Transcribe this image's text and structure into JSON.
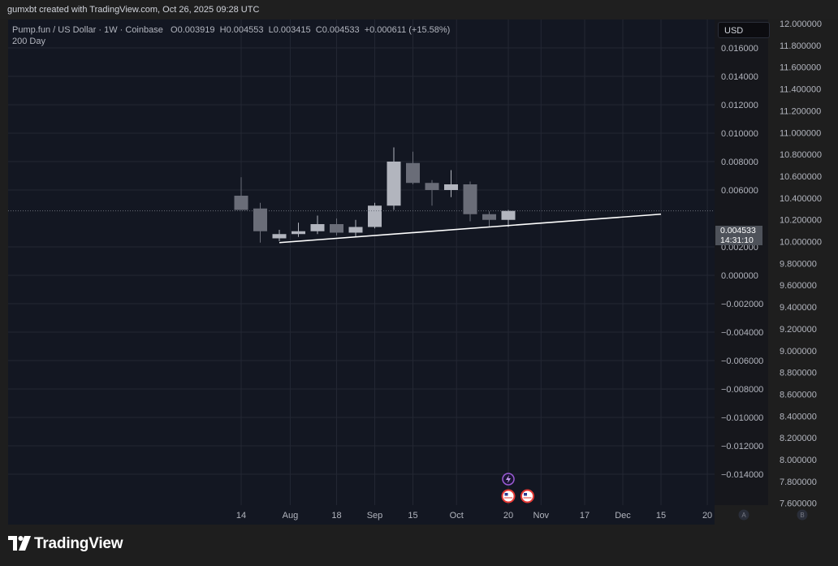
{
  "header": {
    "attribution": "gumxbt created with TradingView.com, Oct 26, 2025 09:28 UTC"
  },
  "legend": {
    "symbol": "Pump.fun / US Dollar · 1W · Coinbase",
    "open_label": "O",
    "open": "0.003919",
    "high_label": "H",
    "high": "0.004553",
    "low_label": "L",
    "low": "0.003415",
    "close_label": "C",
    "close": "0.004533",
    "change": "+0.000611 (+15.58%)",
    "indicator": "200 Day"
  },
  "currency_button": "USD",
  "last_price": {
    "value": "0.004533",
    "countdown": "14:31:10"
  },
  "footer": {
    "brand": "TradingView"
  },
  "colors": {
    "background": "#131722",
    "grid": "#232733",
    "candle_up": "#b2b5be",
    "candle_down": "#6a6d78",
    "trendline": "#ffffff",
    "axis_text": "#b2b5be"
  },
  "chart_data": {
    "type": "candlestick",
    "x": [
      "2025-07-14",
      "2025-07-21",
      "2025-07-28",
      "2025-08-04",
      "2025-08-11",
      "2025-08-18",
      "2025-08-25",
      "2025-09-01",
      "2025-09-08",
      "2025-09-15",
      "2025-09-22",
      "2025-09-29",
      "2025-10-06",
      "2025-10-13",
      "2025-10-20"
    ],
    "open": [
      0.0056,
      0.0047,
      0.0026,
      0.0029,
      0.0031,
      0.0036,
      0.003,
      0.0034,
      0.0049,
      0.0079,
      0.0065,
      0.006,
      0.0064,
      0.0043,
      0.0039
    ],
    "high": [
      0.0069,
      0.0051,
      0.0032,
      0.0037,
      0.0042,
      0.004,
      0.0039,
      0.0051,
      0.009,
      0.0087,
      0.0067,
      0.0074,
      0.0066,
      0.0045,
      0.0046
    ],
    "low": [
      0.0046,
      0.0023,
      0.0024,
      0.0027,
      0.0029,
      0.0028,
      0.0027,
      0.0033,
      0.0046,
      0.0064,
      0.0049,
      0.0055,
      0.0038,
      0.0034,
      0.0034
    ],
    "close": [
      0.0046,
      0.0031,
      0.0029,
      0.0031,
      0.0036,
      0.003,
      0.0034,
      0.0049,
      0.008,
      0.0065,
      0.006,
      0.0064,
      0.0043,
      0.0039,
      0.004533
    ],
    "trendline": {
      "x": [
        "2025-07-28",
        "2025-12-15"
      ],
      "y": [
        0.0023,
        0.0043
      ]
    },
    "left_axis_ticks": [
      "12.000000",
      "11.800000",
      "11.600000",
      "11.400000",
      "11.200000",
      "11.000000",
      "10.800000",
      "10.600000",
      "10.400000",
      "10.200000",
      "10.000000",
      "9.800000",
      "9.600000",
      "9.400000",
      "9.200000",
      "9.000000",
      "8.800000",
      "8.600000",
      "8.400000",
      "8.200000",
      "8.000000",
      "7.800000",
      "7.600000"
    ],
    "right_axis_ticks": [
      "0.016000",
      "0.014000",
      "0.012000",
      "0.010000",
      "0.008000",
      "0.006000",
      "0.002000",
      "0.000000",
      "−0.002000",
      "−0.004000",
      "−0.006000",
      "−0.008000",
      "−0.010000",
      "−0.012000",
      "−0.014000"
    ],
    "x_tick_labels": [
      "14",
      "Aug",
      "18",
      "Sep",
      "15",
      "Oct",
      "20",
      "Nov",
      "17",
      "Dec",
      "15",
      "20"
    ],
    "x_tick_dates": [
      "2025-07-14",
      "2025-08-01",
      "2025-08-18",
      "2025-09-01",
      "2025-09-15",
      "2025-10-01",
      "2025-10-20",
      "2025-11-01",
      "2025-11-17",
      "2025-12-01",
      "2025-12-15",
      "2026-01-01"
    ],
    "ylim": [
      -0.015,
      0.0175
    ],
    "corner_buttons": [
      "A",
      "B"
    ]
  }
}
